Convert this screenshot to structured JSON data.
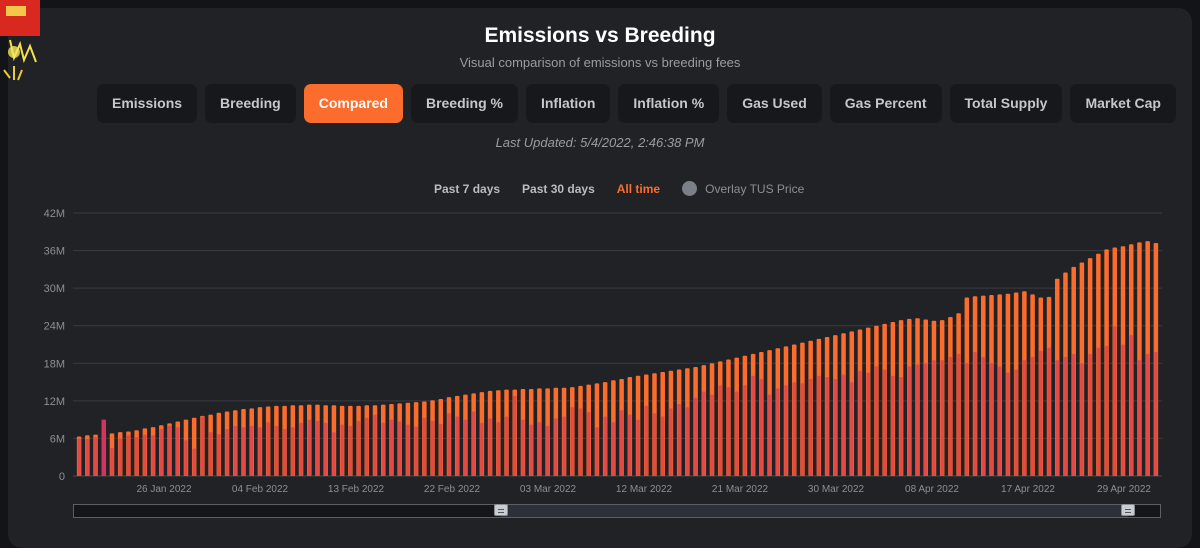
{
  "header": {
    "title": "Emissions vs Breeding",
    "subtitle": "Visual comparison of emissions vs breeding fees",
    "last_updated": "Last Updated: 5/4/2022, 2:46:38 PM"
  },
  "tabs": [
    {
      "label": "Emissions",
      "active": false
    },
    {
      "label": "Breeding",
      "active": false
    },
    {
      "label": "Compared",
      "active": true
    },
    {
      "label": "Breeding %",
      "active": false
    },
    {
      "label": "Inflation",
      "active": false
    },
    {
      "label": "Inflation %",
      "active": false
    },
    {
      "label": "Gas Used",
      "active": false
    },
    {
      "label": "Gas Percent",
      "active": false
    },
    {
      "label": "Total Supply",
      "active": false
    },
    {
      "label": "Market Cap",
      "active": false
    }
  ],
  "range_selector": {
    "options": [
      {
        "label": "Past 7 days",
        "active": false
      },
      {
        "label": "Past 30 days",
        "active": false
      },
      {
        "label": "All time",
        "active": true
      }
    ],
    "overlay_label": "Overlay TUS Price"
  },
  "colors": {
    "accent": "#fb6c2d",
    "emissions": "#fb6c2d",
    "breeding": "#e24a43",
    "breeding_spike": "#d33360",
    "card": "#212226"
  },
  "chart_data": {
    "type": "bar",
    "x_start": "2022-01-18",
    "x_end": "2022-05-04",
    "ylim": [
      0,
      42000000
    ],
    "y_ticks": [
      "0",
      "6M",
      "12M",
      "18M",
      "24M",
      "30M",
      "36M",
      "42M"
    ],
    "x_ticks": [
      "26 Jan 2022",
      "04 Feb 2022",
      "13 Feb 2022",
      "22 Feb 2022",
      "03 Mar 2022",
      "12 Mar 2022",
      "21 Mar 2022",
      "30 Mar 2022",
      "08 Apr 2022",
      "17 Apr 2022",
      "29 Apr 2022"
    ],
    "grid": true,
    "series": [
      {
        "values": [
          6.3,
          6.5,
          6.6,
          6.9,
          6.8,
          7.0,
          7.1,
          7.3,
          7.6,
          7.8,
          8.1,
          8.4,
          8.7,
          9.0,
          9.3,
          9.6,
          9.8,
          10.1,
          10.3,
          10.5,
          10.7,
          10.8,
          11.0,
          11.1,
          11.2,
          11.2,
          11.3,
          11.3,
          11.4,
          11.4,
          11.3,
          11.3,
          11.2,
          11.2,
          11.2,
          11.3,
          11.3,
          11.4,
          11.5,
          11.6,
          11.7,
          11.8,
          11.9,
          12.1,
          12.3,
          12.6,
          12.8,
          13.0,
          13.2,
          13.4,
          13.6,
          13.7,
          13.8,
          13.8,
          13.9,
          13.9,
          14.0,
          14.0,
          14.1,
          14.1,
          14.2,
          14.4,
          14.6,
          14.8,
          15.0,
          15.3,
          15.5,
          15.8,
          16.0,
          16.2,
          16.4,
          16.6,
          16.8,
          17.0,
          17.2,
          17.4,
          17.7,
          18.0,
          18.3,
          18.6,
          18.9,
          19.2,
          19.5,
          19.8,
          20.1,
          20.4,
          20.7,
          21.0,
          21.3,
          21.6,
          21.9,
          22.2,
          22.5,
          22.8,
          23.1,
          23.4,
          23.7,
          24.0,
          24.3,
          24.6,
          24.9,
          25.1,
          25.2,
          25.0,
          24.8,
          24.9,
          25.4,
          26.0,
          28.5,
          28.7,
          28.8,
          28.9,
          29.0,
          29.1,
          29.3,
          29.5,
          29.0,
          28.5,
          28.6,
          31.5,
          32.5,
          33.4,
          34.1,
          34.8,
          35.5,
          36.2,
          36.5,
          36.7,
          37.0,
          37.3,
          37.5,
          37.2
        ],
        "color": "#fb6c2d"
      },
      {
        "values": [
          6.0,
          5.9,
          6.2,
          9.0,
          4.5,
          6.0,
          6.5,
          6.2,
          6.6,
          6.5,
          7.5,
          8.0,
          7.8,
          5.7,
          4.4,
          9.5,
          7.0,
          6.7,
          7.5,
          8.0,
          7.8,
          8.0,
          7.8,
          8.6,
          8.0,
          7.5,
          7.8,
          8.5,
          9.0,
          8.8,
          8.5,
          7.0,
          8.2,
          8.0,
          8.8,
          9.3,
          9.8,
          8.5,
          9.0,
          8.7,
          8.2,
          7.9,
          9.3,
          8.8,
          8.3,
          10.0,
          9.5,
          9.0,
          10.3,
          8.5,
          9.2,
          8.6,
          9.5,
          12.8,
          9.0,
          8.2,
          8.6,
          8.0,
          9.2,
          9.5,
          11.0,
          10.8,
          10.2,
          7.8,
          9.5,
          8.6,
          10.5,
          9.8,
          9.0,
          11.2,
          10.0,
          9.5,
          10.8,
          11.5,
          11.0,
          12.5,
          13.5,
          13.0,
          14.5,
          14.2,
          13.5,
          14.5,
          16.0,
          15.5,
          13.0,
          14.0,
          14.5,
          15.0,
          14.8,
          15.5,
          16.0,
          15.8,
          15.5,
          16.2,
          15.0,
          16.8,
          16.5,
          17.5,
          17.0,
          16.0,
          15.8,
          17.5,
          17.8,
          18.0,
          18.5,
          18.5,
          19.0,
          19.5,
          18.0,
          19.8,
          19.0,
          18.0,
          17.5,
          16.5,
          17.0,
          18.5,
          19.0,
          20.0,
          20.5,
          18.5,
          19.0,
          19.5,
          18.0,
          19.5,
          20.5,
          20.8,
          23.9,
          21.0,
          22.5,
          18.5,
          19.5,
          19.8
        ],
        "color": "#e24a43"
      }
    ]
  }
}
